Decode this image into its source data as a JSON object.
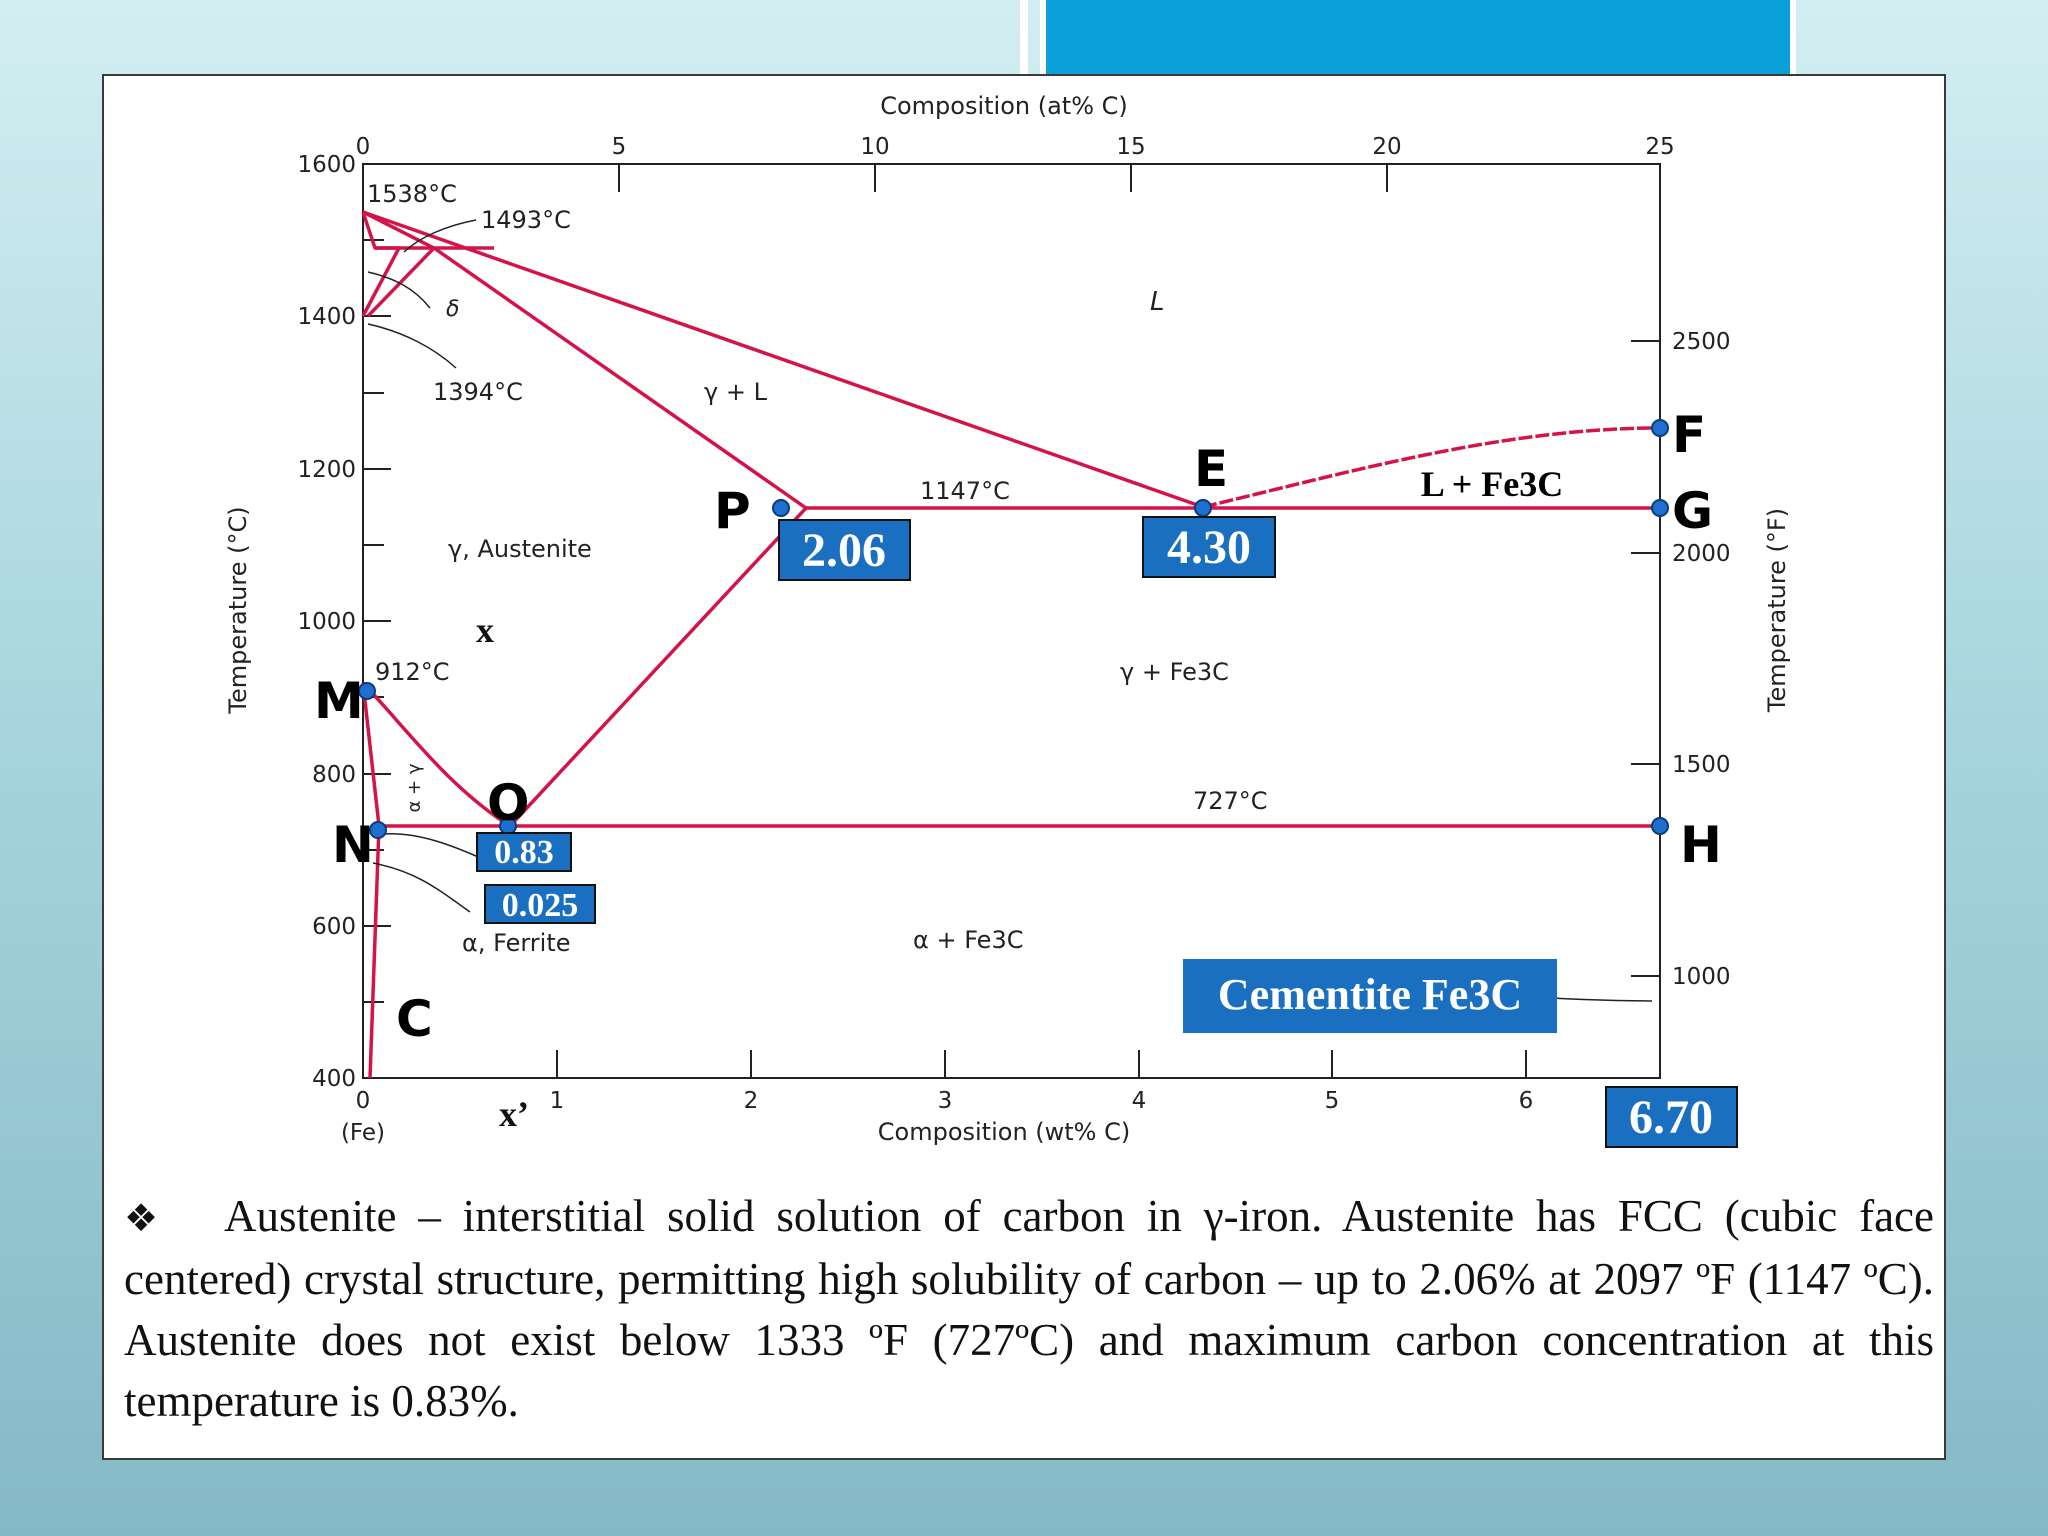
{
  "diagram": {
    "axes": {
      "bottom_label": "Composition (wt% C)",
      "top_label": "Composition (at% C)",
      "left_label": "Temperature (°C)",
      "right_label": "Temperature (°F)",
      "fe_label": "(Fe)",
      "bottom_ticks": [
        "0",
        "1",
        "2",
        "3",
        "4",
        "5",
        "6"
      ],
      "top_ticks": [
        "0",
        "5",
        "10",
        "15",
        "20",
        "25"
      ],
      "left_ticks": [
        "400",
        "600",
        "800",
        "1000",
        "1200",
        "1400",
        "1600"
      ],
      "right_ticks": [
        "1000",
        "1500",
        "2000",
        "2500"
      ],
      "x_range_wt": [
        0,
        6.7
      ],
      "y_range_c": [
        400,
        1600
      ]
    },
    "temperatures": {
      "t1538": "1538°C",
      "t1493": "1493°C",
      "t1394": "1394°C",
      "t1147": "1147°C",
      "t912": "912°C",
      "t727": "727°C"
    },
    "phases": {
      "liquid": "L",
      "gamma_liquid": "γ + L",
      "austenite": "γ, Austenite",
      "gamma_cementite": "γ + Fe3C",
      "alpha_cementite": "α + Fe3C",
      "ferrite": "α, Ferrite",
      "delta": "δ",
      "alpha_gamma": "α + γ",
      "liquid_cementite": "L + Fe3C"
    },
    "points": {
      "P": "P",
      "E": "E",
      "F": "F",
      "G": "G",
      "M": "M",
      "O": "O",
      "N": "N",
      "H": "H",
      "C": "C",
      "x": "x",
      "x_prime": "x’"
    },
    "value_boxes": {
      "p": "2.06",
      "e": "4.30",
      "o": "0.83",
      "n": "0.025",
      "cementite": "6.70",
      "cementite_label": "Cementite Fe3C"
    },
    "colors": {
      "phase_lines": "#d4134a",
      "value_box": "#1a6fc0",
      "point_marker": "#1f6fd0"
    }
  },
  "description": {
    "bullet": "❖",
    "text": "Austenite – interstitial solid solution of carbon in γ-iron. Austenite has FCC (cubic face centered) crystal structure, permitting high solubility of carbon – up to 2.06% at 2097 ºF (1147 ºC).  Austenite does not exist below 1333 ºF (727ºC) and maximum carbon concentration at this temperature is 0.83%."
  }
}
